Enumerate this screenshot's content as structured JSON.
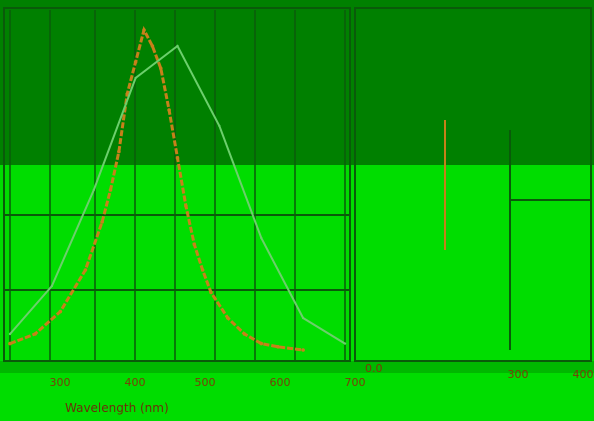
{
  "colors": {
    "background_green": "#00dd00",
    "header_green": "#008000",
    "grid_dark": "#0a5a0a",
    "curve_orange": "#c8801a",
    "curve_light": "#6ccf6c",
    "tick_text": "#7a3b0a"
  },
  "chart_data": [
    {
      "type": "line",
      "title": "",
      "xlabel": "Wavelength (nm)",
      "ylabel": "",
      "xlim": [
        300,
        700
      ],
      "x_ticks": [
        "300",
        "400",
        "500",
        "600",
        "700"
      ],
      "series": [
        {
          "name": "",
          "x": [
            300,
            330,
            360,
            390,
            410,
            420,
            430,
            440,
            450,
            460,
            470,
            480,
            490,
            500,
            510,
            520,
            530,
            540,
            560,
            580,
            600,
            620,
            650
          ],
          "values": [
            0.02,
            0.05,
            0.12,
            0.25,
            0.4,
            0.5,
            0.62,
            0.8,
            0.9,
            1.0,
            0.95,
            0.88,
            0.75,
            0.6,
            0.45,
            0.33,
            0.25,
            0.18,
            0.1,
            0.05,
            0.02,
            0.01,
            0.0
          ]
        },
        {
          "name": "",
          "x": [
            300,
            350,
            400,
            450,
            500,
            550,
            600,
            650,
            700
          ],
          "values": [
            0.05,
            0.2,
            0.5,
            0.85,
            0.95,
            0.7,
            0.35,
            0.1,
            0.02
          ]
        }
      ],
      "y_side_ticks": [
        "0.0"
      ]
    },
    {
      "type": "line",
      "title": "",
      "xlabel": "",
      "ylabel": "",
      "x_ticks": [
        "300",
        "400"
      ],
      "series": []
    }
  ]
}
